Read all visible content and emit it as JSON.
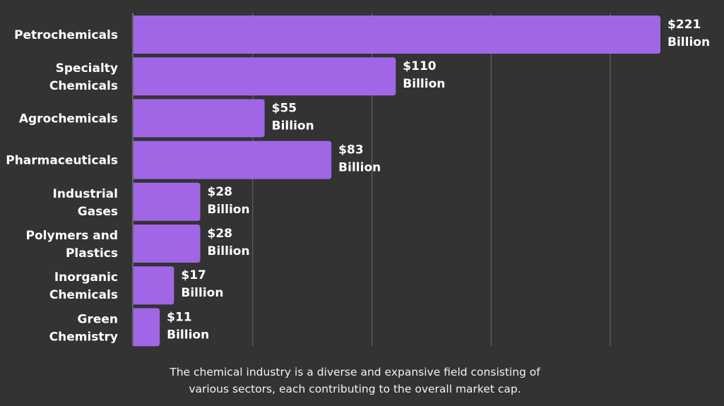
{
  "chart_data": {
    "type": "bar",
    "orientation": "horizontal",
    "categories": [
      "Petrochemicals",
      "Specialty Chemicals",
      "Agrochemicals",
      "Pharmaceuticals",
      "Industrial Gases",
      "Polymers and Plastics",
      "Inorganic Chemicals",
      "Green Chemistry"
    ],
    "category_lines": [
      [
        "Petrochemicals"
      ],
      [
        "Specialty",
        "Chemicals"
      ],
      [
        "Agrochemicals"
      ],
      [
        "Pharmaceuticals"
      ],
      [
        "Industrial",
        "Gases"
      ],
      [
        "Polymers and",
        "Plastics"
      ],
      [
        "Inorganic",
        "Chemicals"
      ],
      [
        "Green",
        "Chemistry"
      ]
    ],
    "values": [
      221,
      110,
      55,
      83,
      28,
      28,
      17,
      11
    ],
    "data_labels": [
      [
        "$221",
        "Billion"
      ],
      [
        "$110",
        "Billion"
      ],
      [
        "$55",
        "Billion"
      ],
      [
        "$83",
        "Billion"
      ],
      [
        "$28",
        "Billion"
      ],
      [
        "$28",
        "Billion"
      ],
      [
        "$17",
        "Billion"
      ],
      [
        "$11",
        "Billion"
      ]
    ],
    "xlim": [
      0,
      221
    ],
    "gridlines": [
      50,
      100,
      150,
      200
    ],
    "grid": true,
    "x_tick_labels_shown": false,
    "bar_color": "#a066e6",
    "background": "#333333",
    "title": "",
    "xlabel": "",
    "ylabel": ""
  },
  "footer": {
    "line1": "The chemical industry is a diverse and expansive field consisting of",
    "line2": "various sectors, each contributing to the overall market cap."
  }
}
